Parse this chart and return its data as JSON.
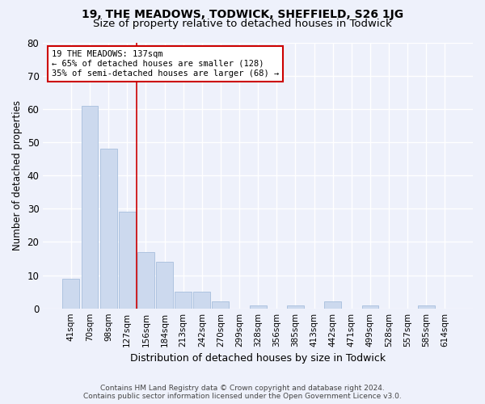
{
  "title1": "19, THE MEADOWS, TODWICK, SHEFFIELD, S26 1JG",
  "title2": "Size of property relative to detached houses in Todwick",
  "xlabel": "Distribution of detached houses by size in Todwick",
  "ylabel": "Number of detached properties",
  "categories": [
    "41sqm",
    "70sqm",
    "98sqm",
    "127sqm",
    "156sqm",
    "184sqm",
    "213sqm",
    "242sqm",
    "270sqm",
    "299sqm",
    "328sqm",
    "356sqm",
    "385sqm",
    "413sqm",
    "442sqm",
    "471sqm",
    "499sqm",
    "528sqm",
    "557sqm",
    "585sqm",
    "614sqm"
  ],
  "values": [
    9,
    61,
    48,
    29,
    17,
    14,
    5,
    5,
    2,
    0,
    1,
    0,
    1,
    0,
    2,
    0,
    1,
    0,
    0,
    1,
    0
  ],
  "bar_color": "#ccd9ee",
  "bar_edge_color": "#aec4e0",
  "marker_label": "19 THE MEADOWS: 137sqm",
  "annotation_line1": "← 65% of detached houses are smaller (128)",
  "annotation_line2": "35% of semi-detached houses are larger (68) →",
  "annotation_box_color": "#ffffff",
  "annotation_box_edge": "#cc0000",
  "vline_color": "#cc0000",
  "vline_x_index": 3.5,
  "ylim": [
    0,
    80
  ],
  "yticks": [
    0,
    10,
    20,
    30,
    40,
    50,
    60,
    70,
    80
  ],
  "footer1": "Contains HM Land Registry data © Crown copyright and database right 2024.",
  "footer2": "Contains public sector information licensed under the Open Government Licence v3.0.",
  "background_color": "#eef1fb",
  "axes_background": "#eef1fb",
  "grid_color": "#ffffff",
  "title_fontsize": 10,
  "subtitle_fontsize": 9.5,
  "bar_width": 0.9
}
